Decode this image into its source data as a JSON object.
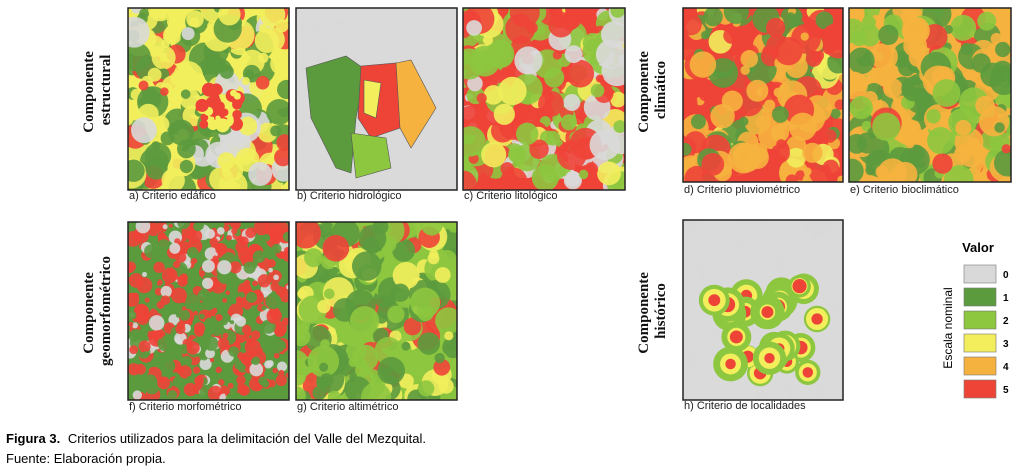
{
  "components": [
    {
      "lines": [
        "Componente",
        "estructural"
      ]
    },
    {
      "lines": [
        "Componente",
        "geomorfométrico"
      ]
    },
    {
      "lines": [
        "Componente",
        "climático"
      ]
    },
    {
      "lines": [
        "Componente",
        "histórico"
      ]
    }
  ],
  "panels": [
    {
      "caption": "a) Criterio edáfico"
    },
    {
      "caption": "b) Criterio hidrológico"
    },
    {
      "caption": "c) Criterio litológico"
    },
    {
      "caption": "d) Criterio pluviométrico"
    },
    {
      "caption": "e) Criterio bioclimático"
    },
    {
      "caption": "f) Criterio morfométrico"
    },
    {
      "caption": "g) Criterio altimétrico"
    },
    {
      "caption": "h) Criterio de localidades"
    }
  ],
  "legend": {
    "title": "Valor",
    "axis_label": "Escala nominal",
    "items": [
      {
        "label": "0",
        "color": "#d9d9d9"
      },
      {
        "label": "1",
        "color": "#5c9a3e"
      },
      {
        "label": "2",
        "color": "#8dc63f"
      },
      {
        "label": "3",
        "color": "#f2ee5c"
      },
      {
        "label": "4",
        "color": "#f6b23e"
      },
      {
        "label": "5",
        "color": "#ee4438"
      }
    ]
  },
  "figure_caption": {
    "label": "Figura 3.",
    "text": "Criterios utilizados para la delimitación del Valle del Mezquital.",
    "source": "Fuente: Elaboración propia."
  }
}
